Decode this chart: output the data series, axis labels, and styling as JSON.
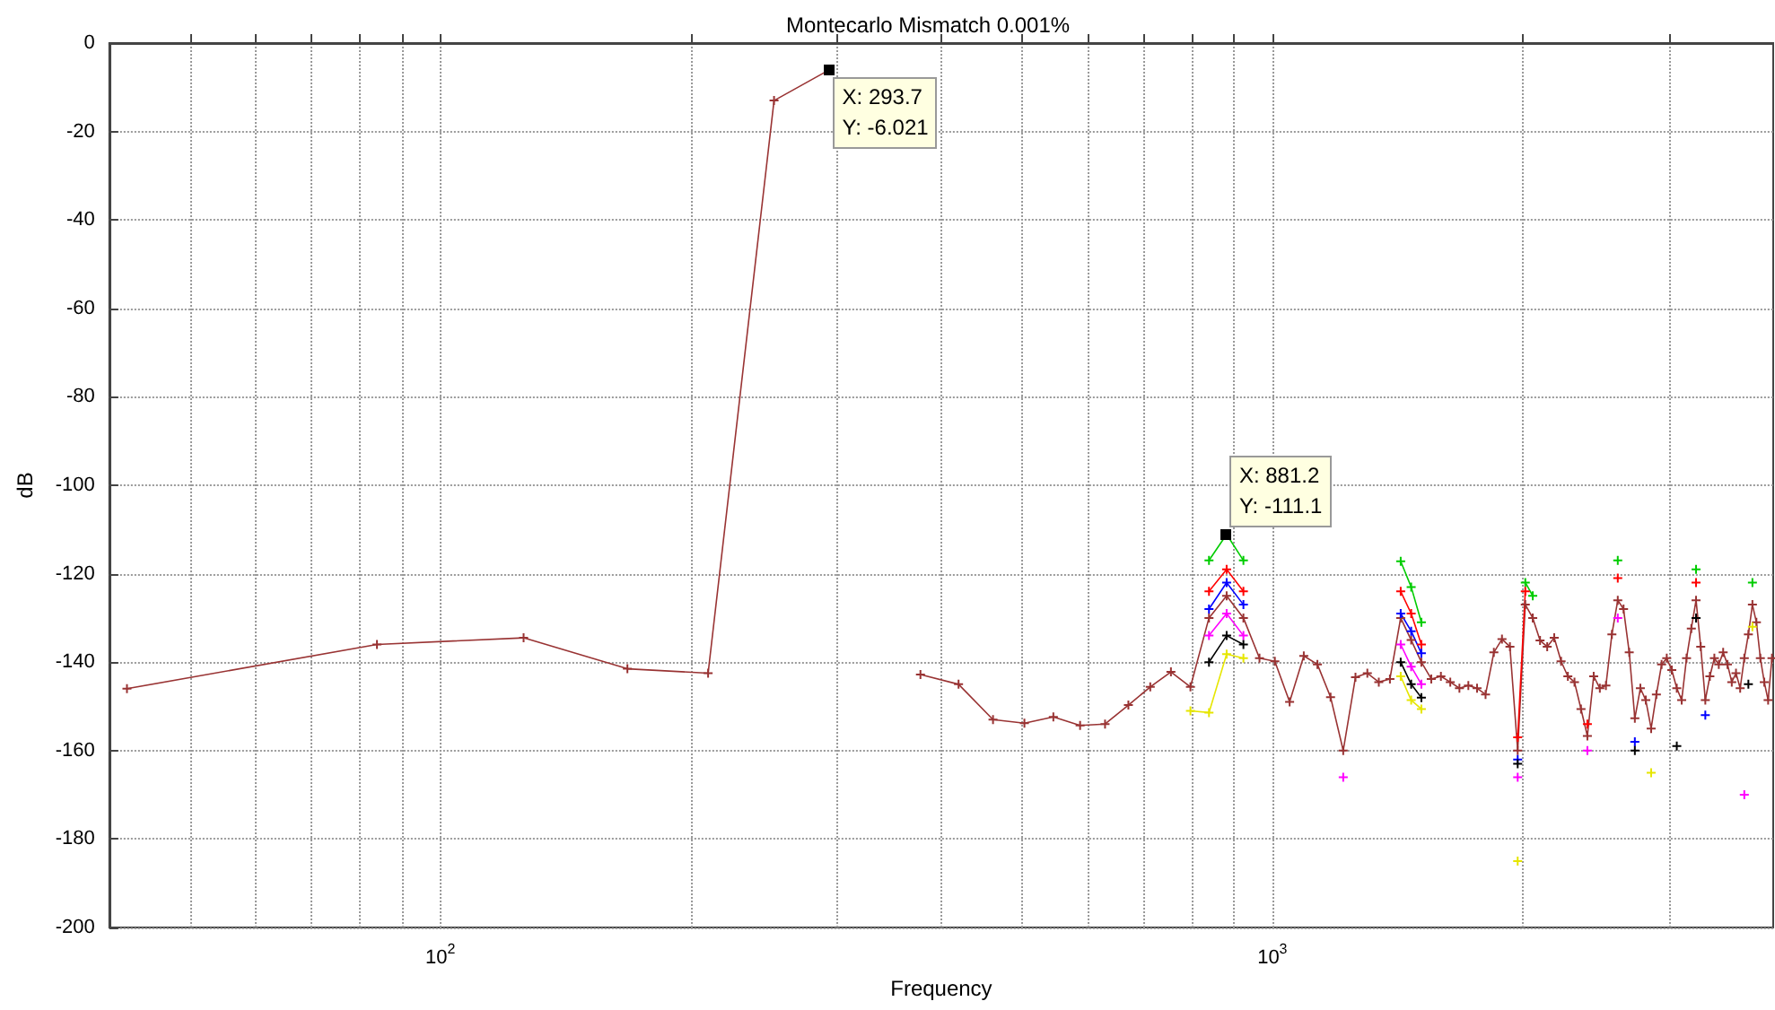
{
  "chart_data": {
    "type": "line",
    "title": "Montecarlo Mismatch 0.001%",
    "xlabel": "Frequency",
    "ylabel": "dB",
    "log": "x",
    "grid": true,
    "marker": "cross",
    "line_style": "solid",
    "xlim": [
      40,
      4000
    ],
    "ylim": [
      -200,
      0
    ],
    "xticks": [
      {
        "value": 50,
        "label": null
      },
      {
        "value": 60,
        "label": null
      },
      {
        "value": 70,
        "label": null
      },
      {
        "value": 80,
        "label": null
      },
      {
        "value": 90,
        "label": null
      },
      {
        "value": 100,
        "label": "10$^{2}$"
      },
      {
        "value": 200,
        "label": null
      },
      {
        "value": 300,
        "label": null
      },
      {
        "value": 400,
        "label": null
      },
      {
        "value": 500,
        "label": null
      },
      {
        "value": 600,
        "label": null
      },
      {
        "value": 700,
        "label": null
      },
      {
        "value": 800,
        "label": null
      },
      {
        "value": 900,
        "label": null
      },
      {
        "value": 1000,
        "label": "10$^{3}$"
      },
      {
        "value": 2000,
        "label": null
      },
      {
        "value": 3000,
        "label": null
      }
    ],
    "yticks": [
      -200,
      -180,
      -160,
      -140,
      -120,
      -100,
      -80,
      -60,
      -40,
      -20,
      0
    ],
    "annotations": [
      {
        "text": "X: 293.7\nY: -6.021",
        "x": 293.7,
        "y": -6.021
      },
      {
        "text": "X: 881.2\nY: -111.1",
        "x": 881.2,
        "y": -111.1
      }
    ],
    "x": [
      42.0,
      83.9,
      125.9,
      167.8,
      209.8,
      251.8,
      293.7,
      335.7,
      377.6,
      419.6,
      461.6,
      503.5,
      545.5,
      587.4,
      629.4,
      671.4,
      713.3,
      755.3,
      797.2,
      839.2,
      881.2,
      923.1,
      965.1,
      1007.0,
      1049.0,
      1091.0,
      1132.9,
      1174.9,
      1216.8,
      1258.8,
      1300.8,
      1342.7,
      1384.7,
      1426.6,
      1468.6,
      1510.6,
      1552.5,
      1594.5,
      1636.4,
      1678.4,
      1720.4,
      1762.3,
      1804.3,
      1846.2,
      1888.2,
      1930.2,
      1972.1,
      2014.1,
      2056.0,
      2098.0,
      2140.0,
      2181.9,
      2223.9,
      2265.8,
      2307.8,
      2349.8,
      2391.7,
      2433.7,
      2475.6,
      2517.6,
      2559.6,
      2601.5,
      2643.5,
      2685.4,
      2727.4,
      2769.4,
      2811.3,
      2853.3,
      2895.2,
      2937.2,
      2979.2,
      3021.1,
      3063.1,
      3105.0,
      3147.0,
      3189.0,
      3230.9,
      3272.9,
      3314.8,
      3356.8,
      3398.8,
      3440.7,
      3482.7,
      3524.6,
      3566.6,
      3608.6,
      3650.5,
      3692.5,
      3734.4,
      3776.4,
      3818.4,
      3860.3,
      3902.3,
      3944.2,
      3986.2
    ],
    "series": [
      {
        "color": "#993333",
        "values": [
          -146,
          -136,
          -134.5,
          -141.5,
          -142.5,
          -13,
          -6,
          null,
          -142.8,
          -145,
          -153,
          -153.8,
          -152.4,
          -154.3,
          -154,
          -149.7,
          -145.6,
          -142.2,
          -145.6,
          -130,
          -125,
          -130,
          -139.1,
          -139.8,
          -149,
          -138.6,
          -140.5,
          -147.9,
          -160,
          -143.4,
          -142.5,
          -144.5,
          -143.8,
          -130,
          -135,
          -140,
          -143.8,
          -143.2,
          -144.5,
          -145.9,
          -145.3,
          -145.9,
          -147.3,
          -137.8,
          -134.8,
          -136.5,
          -160,
          -127,
          -130,
          -135.1,
          -136.5,
          -134.5,
          -139.8,
          -143.2,
          -144.5,
          -150.6,
          -156.7,
          -143.2,
          -145.9,
          -145.3,
          -133.7,
          -126,
          -128,
          -137.8,
          -152.7,
          -145.9,
          -148.6,
          -155,
          -147.3,
          -140.5,
          -139.1,
          -141.8,
          -145.9,
          -148.6,
          -139.1,
          -132.4,
          -126,
          -136.5,
          -148.6,
          -143.2,
          -139.1,
          -140.5,
          -137.8,
          -140.5,
          -144.5,
          -142.5,
          -145.9,
          -139.1,
          -133.7,
          -127,
          -131,
          -139.1,
          -144.5,
          -148.6,
          -139.1
        ]
      },
      {
        "color": "#00cc00",
        "x": [
          839.2,
          881.2,
          923.1,
          965.1,
          1426.6,
          1468.6,
          1510.6,
          1552.5,
          2014.1,
          2056.0,
          2098.0,
          2601.5,
          2643.5,
          3230.9,
          3272.9,
          3776.4
        ],
        "values": [
          -117,
          -111.1,
          -117,
          null,
          -117.2,
          -123,
          -131,
          null,
          -122,
          -125,
          null,
          -117,
          null,
          -119,
          null,
          -122
        ]
      },
      {
        "color": "#ff0000",
        "x": [
          839.2,
          881.2,
          923.1,
          965.1,
          1426.6,
          1468.6,
          1510.6,
          1552.5,
          1972.1,
          2014.1,
          2056.0,
          2391.7,
          2433.7,
          2601.5,
          2643.5,
          3230.9
        ],
        "values": [
          -124,
          -119,
          -124,
          null,
          -124,
          -129,
          -136,
          null,
          -157,
          -124,
          null,
          -154,
          null,
          -121,
          null,
          -122
        ]
      },
      {
        "color": "#0000ff",
        "x": [
          839.2,
          881.2,
          923.1,
          965.1,
          1426.6,
          1468.6,
          1510.6,
          1552.5,
          1972.1,
          2014.1,
          2727.4,
          2769.4,
          3314.8
        ],
        "values": [
          -128,
          -122,
          -127,
          null,
          -129,
          -133,
          -138,
          null,
          -162,
          null,
          -158,
          null,
          -152
        ]
      },
      {
        "color": "#ff00ff",
        "x": [
          839.2,
          881.2,
          923.1,
          965.1,
          1216.8,
          1258.8,
          1426.6,
          1468.6,
          1510.6,
          1552.5,
          1972.1,
          2014.1,
          2391.7,
          2433.7,
          2601.5,
          2643.5,
          3692.5
        ],
        "values": [
          -134,
          -129,
          -134,
          null,
          -166,
          null,
          -136,
          -141,
          -145,
          null,
          -166,
          null,
          -160,
          null,
          -130,
          null,
          -170
        ]
      },
      {
        "color": "#000000",
        "x": [
          839.2,
          881.2,
          923.1,
          965.1,
          1426.6,
          1468.6,
          1510.6,
          1552.5,
          1972.1,
          2014.1,
          2727.4,
          2769.4,
          3063.1,
          3105.0,
          3230.9,
          3272.9,
          3734.4
        ],
        "values": [
          -140,
          -134,
          -136,
          null,
          -140,
          -145,
          -148,
          null,
          -163,
          null,
          -160,
          null,
          -159,
          null,
          -130,
          null,
          -145
        ]
      },
      {
        "color": "#e6e600",
        "x": [
          797.2,
          839.2,
          881.2,
          923.1,
          965.1,
          1426.6,
          1468.6,
          1510.6,
          1552.5,
          1972.1,
          2014.1,
          2853.3,
          2895.2,
          3776.4
        ],
        "values": [
          -151,
          -151.4,
          -138.2,
          -139.1,
          null,
          -143.2,
          -148.6,
          -150.6,
          null,
          -185,
          null,
          -165,
          null,
          -132
        ]
      }
    ]
  }
}
